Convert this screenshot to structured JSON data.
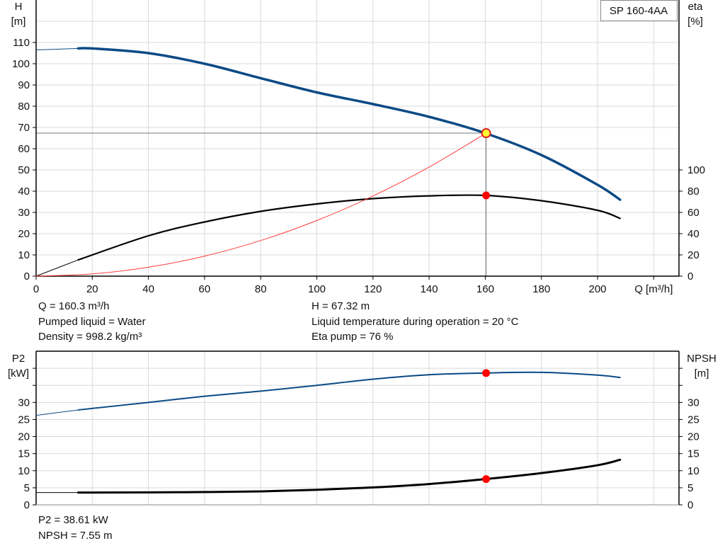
{
  "chart_data": [
    {
      "type": "line",
      "title": "SP 160-4AA",
      "xlabel": "Q [m³/h]",
      "ylabel_left": [
        "H",
        "[m]"
      ],
      "ylabel_right": [
        "eta",
        "[%]"
      ],
      "xlim": [
        0,
        229
      ],
      "ylim_left": [
        0,
        130
      ],
      "ylim_right": [
        0,
        260
      ],
      "x_ticks": [
        0,
        20,
        40,
        60,
        80,
        100,
        120,
        140,
        160,
        180,
        200
      ],
      "y_ticks_left": [
        0,
        10,
        20,
        30,
        40,
        50,
        60,
        70,
        80,
        90,
        100,
        110
      ],
      "y_ticks_right": [
        0,
        20,
        40,
        60,
        80,
        100
      ],
      "grid": true,
      "series": [
        {
          "axis": "left",
          "color": "#0b4a85",
          "extrapolated": [
            [
              0,
              106.5
            ],
            [
              15,
              107.2
            ]
          ],
          "x": [
            15,
            20,
            40,
            60,
            80,
            100,
            120,
            140,
            160,
            180,
            200,
            208
          ],
          "y": [
            107.2,
            107.2,
            105,
            100,
            93.2,
            86.5,
            81,
            75,
            67.3,
            57,
            43,
            36
          ]
        },
        {
          "axis": "right",
          "color": "#000000",
          "extrapolated": [
            [
              0,
              0
            ],
            [
              15,
              15.3
            ]
          ],
          "x": [
            15,
            40,
            60,
            80,
            100,
            120,
            140,
            160,
            180,
            200,
            208
          ],
          "y": [
            15.3,
            38,
            51,
            61,
            68,
            73,
            75.6,
            76,
            71,
            62,
            54.4
          ]
        },
        {
          "axis": "left",
          "color": "#ff3b3b",
          "x": [
            0,
            20,
            40,
            60,
            80,
            100,
            120,
            140,
            160.3
          ],
          "y": [
            0,
            1.05,
            4.19,
            9.43,
            16.77,
            26.2,
            37.73,
            51.35,
            67.32
          ]
        }
      ],
      "operating_point": {
        "Q": 160.3,
        "H": 67.32,
        "eta": 76
      }
    },
    {
      "type": "line",
      "ylabel_left": [
        "P2",
        "[kW]"
      ],
      "ylabel_right": [
        "NPSH",
        "[m]"
      ],
      "xlim": [
        0,
        229
      ],
      "ylim": [
        0,
        45
      ],
      "y_ticks": [
        0,
        5,
        10,
        15,
        20,
        25,
        30
      ],
      "grid": true,
      "series": [
        {
          "color": "#0b4a85",
          "extrapolated": [
            [
              0,
              26.2
            ],
            [
              15,
              27.8
            ]
          ],
          "x": [
            15,
            40,
            60,
            80,
            100,
            120,
            140,
            160,
            180,
            200,
            208
          ],
          "y": [
            27.8,
            30,
            31.8,
            33.3,
            35,
            36.8,
            38.1,
            38.61,
            38.8,
            38,
            37.3
          ]
        },
        {
          "color": "#000000",
          "extrapolated": [
            [
              0,
              3.6
            ],
            [
              15,
              3.6
            ]
          ],
          "x": [
            15,
            40,
            60,
            80,
            100,
            120,
            140,
            160,
            180,
            200,
            208
          ],
          "y": [
            3.6,
            3.65,
            3.75,
            3.95,
            4.4,
            5.1,
            6.1,
            7.55,
            9.3,
            11.6,
            13.2
          ]
        }
      ],
      "operating_point": {
        "Q": 160.3,
        "P2": 38.61,
        "NPSH": 7.55
      }
    }
  ],
  "info": {
    "q": "Q = 160.3 m³/h",
    "liquid": "Pumped liquid = Water",
    "density": "Density = 998.2 kg/m³",
    "h": "H = 67.32 m",
    "temperature": "Liquid temperature during operation = 20 °C",
    "eta": "Eta pump = 76 %",
    "p2": "P2 = 38.61 kW",
    "npsh": "NPSH = 7.55 m"
  }
}
